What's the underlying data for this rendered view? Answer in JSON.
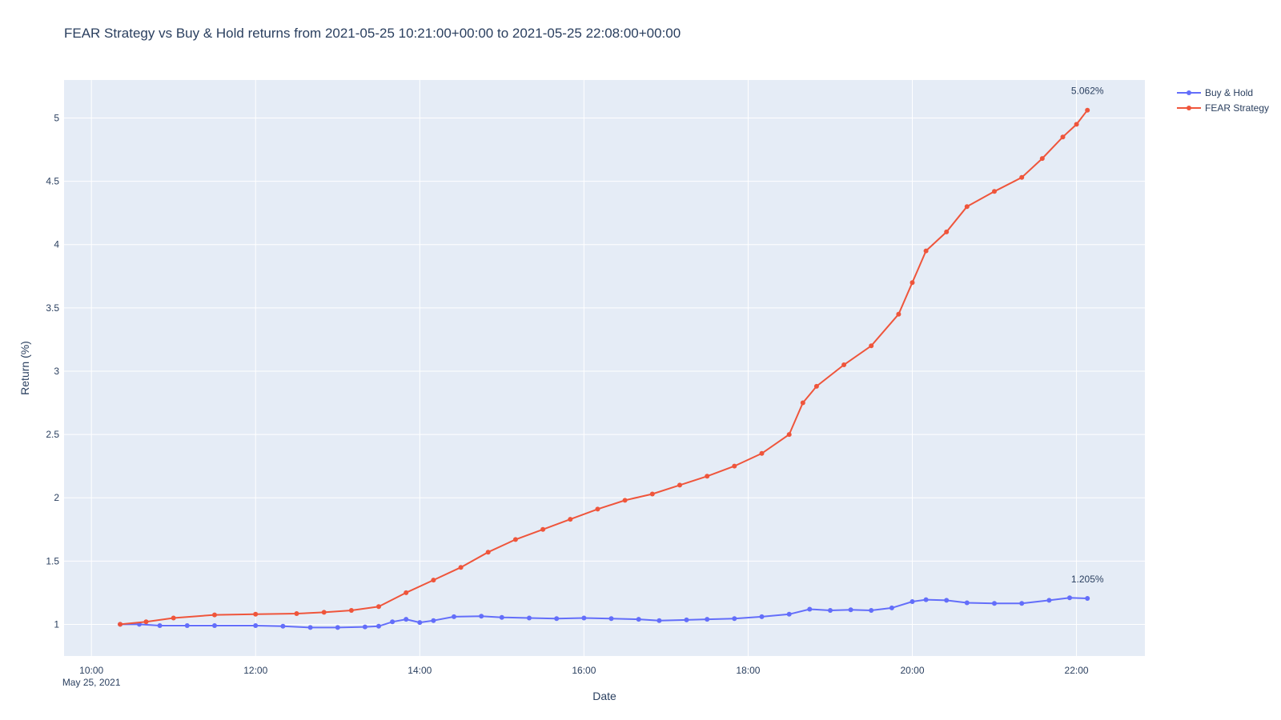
{
  "chart_data": {
    "type": "line",
    "title": "FEAR Strategy vs Buy & Hold returns from 2021-05-25 10:21:00+00:00 to 2021-05-25 22:08:00+00:00",
    "xlabel": "Date",
    "ylabel": "Return (%)",
    "x_range": [
      "2021-05-25 09:40",
      "2021-05-25 22:50"
    ],
    "ylim": [
      0.75,
      5.3
    ],
    "x_ticks": [
      {
        "time": "2021-05-25 10:00",
        "label": "10:00",
        "sublabel": "May 25, 2021"
      },
      {
        "time": "2021-05-25 12:00",
        "label": "12:00"
      },
      {
        "time": "2021-05-25 14:00",
        "label": "14:00"
      },
      {
        "time": "2021-05-25 16:00",
        "label": "16:00"
      },
      {
        "time": "2021-05-25 18:00",
        "label": "18:00"
      },
      {
        "time": "2021-05-25 20:00",
        "label": "20:00"
      },
      {
        "time": "2021-05-25 22:00",
        "label": "22:00"
      }
    ],
    "y_ticks": [
      {
        "value": 1,
        "label": "1"
      },
      {
        "value": 1.5,
        "label": "1.5"
      },
      {
        "value": 2,
        "label": "2"
      },
      {
        "value": 2.5,
        "label": "2.5"
      },
      {
        "value": 3,
        "label": "3"
      },
      {
        "value": 3.5,
        "label": "3.5"
      },
      {
        "value": 4,
        "label": "4"
      },
      {
        "value": 4.5,
        "label": "4.5"
      },
      {
        "value": 5,
        "label": "5"
      }
    ],
    "grid": true,
    "legend": "right",
    "series": [
      {
        "name": "Buy & Hold",
        "color": "#636efa",
        "end_label": "1.205%",
        "points": [
          [
            "2021-05-25 10:21",
            1.0
          ],
          [
            "2021-05-25 10:35",
            1.0
          ],
          [
            "2021-05-25 10:50",
            0.99
          ],
          [
            "2021-05-25 11:10",
            0.99
          ],
          [
            "2021-05-25 11:30",
            0.99
          ],
          [
            "2021-05-25 12:00",
            0.99
          ],
          [
            "2021-05-25 12:20",
            0.985
          ],
          [
            "2021-05-25 12:40",
            0.975
          ],
          [
            "2021-05-25 13:00",
            0.975
          ],
          [
            "2021-05-25 13:20",
            0.98
          ],
          [
            "2021-05-25 13:30",
            0.985
          ],
          [
            "2021-05-25 13:40",
            1.02
          ],
          [
            "2021-05-25 13:50",
            1.04
          ],
          [
            "2021-05-25 14:00",
            1.015
          ],
          [
            "2021-05-25 14:10",
            1.03
          ],
          [
            "2021-05-25 14:25",
            1.06
          ],
          [
            "2021-05-25 14:45",
            1.065
          ],
          [
            "2021-05-25 15:00",
            1.055
          ],
          [
            "2021-05-25 15:20",
            1.05
          ],
          [
            "2021-05-25 15:40",
            1.045
          ],
          [
            "2021-05-25 16:00",
            1.05
          ],
          [
            "2021-05-25 16:20",
            1.045
          ],
          [
            "2021-05-25 16:40",
            1.04
          ],
          [
            "2021-05-25 16:55",
            1.03
          ],
          [
            "2021-05-25 17:15",
            1.035
          ],
          [
            "2021-05-25 17:30",
            1.04
          ],
          [
            "2021-05-25 17:50",
            1.045
          ],
          [
            "2021-05-25 18:10",
            1.06
          ],
          [
            "2021-05-25 18:30",
            1.08
          ],
          [
            "2021-05-25 18:45",
            1.12
          ],
          [
            "2021-05-25 19:00",
            1.11
          ],
          [
            "2021-05-25 19:15",
            1.115
          ],
          [
            "2021-05-25 19:30",
            1.11
          ],
          [
            "2021-05-25 19:45",
            1.13
          ],
          [
            "2021-05-25 20:00",
            1.18
          ],
          [
            "2021-05-25 20:10",
            1.195
          ],
          [
            "2021-05-25 20:25",
            1.19
          ],
          [
            "2021-05-25 20:40",
            1.17
          ],
          [
            "2021-05-25 21:00",
            1.165
          ],
          [
            "2021-05-25 21:20",
            1.165
          ],
          [
            "2021-05-25 21:40",
            1.19
          ],
          [
            "2021-05-25 21:55",
            1.21
          ],
          [
            "2021-05-25 22:08",
            1.205
          ]
        ]
      },
      {
        "name": "FEAR Strategy",
        "color": "#ef553b",
        "end_label": "5.062%",
        "points": [
          [
            "2021-05-25 10:21",
            1.0
          ],
          [
            "2021-05-25 10:40",
            1.02
          ],
          [
            "2021-05-25 11:00",
            1.05
          ],
          [
            "2021-05-25 11:30",
            1.075
          ],
          [
            "2021-05-25 12:00",
            1.08
          ],
          [
            "2021-05-25 12:30",
            1.085
          ],
          [
            "2021-05-25 12:50",
            1.095
          ],
          [
            "2021-05-25 13:10",
            1.11
          ],
          [
            "2021-05-25 13:30",
            1.14
          ],
          [
            "2021-05-25 13:50",
            1.25
          ],
          [
            "2021-05-25 14:10",
            1.35
          ],
          [
            "2021-05-25 14:30",
            1.45
          ],
          [
            "2021-05-25 14:50",
            1.57
          ],
          [
            "2021-05-25 15:10",
            1.67
          ],
          [
            "2021-05-25 15:30",
            1.75
          ],
          [
            "2021-05-25 15:50",
            1.83
          ],
          [
            "2021-05-25 16:10",
            1.91
          ],
          [
            "2021-05-25 16:30",
            1.98
          ],
          [
            "2021-05-25 16:50",
            2.03
          ],
          [
            "2021-05-25 17:10",
            2.1
          ],
          [
            "2021-05-25 17:30",
            2.17
          ],
          [
            "2021-05-25 17:50",
            2.25
          ],
          [
            "2021-05-25 18:10",
            2.35
          ],
          [
            "2021-05-25 18:30",
            2.5
          ],
          [
            "2021-05-25 18:40",
            2.75
          ],
          [
            "2021-05-25 18:50",
            2.88
          ],
          [
            "2021-05-25 19:10",
            3.05
          ],
          [
            "2021-05-25 19:30",
            3.2
          ],
          [
            "2021-05-25 19:50",
            3.45
          ],
          [
            "2021-05-25 20:00",
            3.7
          ],
          [
            "2021-05-25 20:10",
            3.95
          ],
          [
            "2021-05-25 20:25",
            4.1
          ],
          [
            "2021-05-25 20:40",
            4.3
          ],
          [
            "2021-05-25 21:00",
            4.42
          ],
          [
            "2021-05-25 21:20",
            4.53
          ],
          [
            "2021-05-25 21:35",
            4.68
          ],
          [
            "2021-05-25 21:50",
            4.85
          ],
          [
            "2021-05-25 22:00",
            4.95
          ],
          [
            "2021-05-25 22:08",
            5.062
          ]
        ]
      }
    ]
  }
}
